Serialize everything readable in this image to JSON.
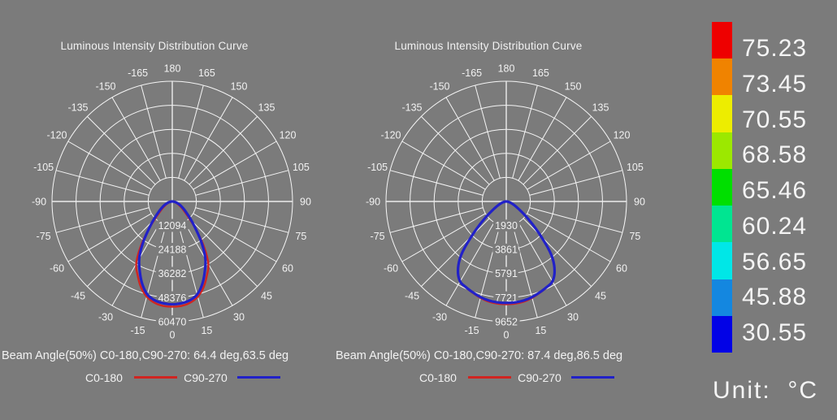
{
  "background": "#7b7b7b",
  "chart_data": [
    {
      "type": "polar-line",
      "title": "Luminous Intensity Distribution Curve",
      "beam_angle_text": "Beam Angle(50%) C0-180,C90-270: 64.4 deg,63.5 deg",
      "beam_angle_c0_180_deg": 64.4,
      "beam_angle_c90_270_deg": 63.5,
      "angle_unit": "deg",
      "angle_ticks": [
        0,
        15,
        30,
        45,
        60,
        75,
        90,
        105,
        120,
        135,
        150,
        165,
        180,
        -15,
        -30,
        -45,
        -60,
        -75,
        -90,
        -105,
        -120,
        -135,
        -150,
        -165
      ],
      "radial_ticks": [
        12094,
        24188,
        36282,
        48376,
        60470
      ],
      "radial_max": 60470,
      "series": [
        {
          "name": "C0-180",
          "color": "#d02521",
          "angle_step_deg": 5,
          "angles_deg": [
            0,
            5,
            10,
            15,
            20,
            25,
            30,
            35,
            40,
            45,
            50,
            55,
            60,
            65,
            70,
            75,
            80,
            85,
            90
          ],
          "values": [
            52910,
            52730,
            51700,
            49590,
            45960,
            41120,
            36280,
            27820,
            18750,
            12090,
            8160,
            6050,
            4230,
            3020,
            1940,
            1210,
            730,
            360,
            0
          ]
        },
        {
          "name": "C90-270",
          "color": "#2121c8",
          "angle_step_deg": 5,
          "angles_deg": [
            0,
            5,
            10,
            15,
            20,
            25,
            30,
            35,
            40,
            45,
            50,
            55,
            60,
            65,
            70,
            75,
            80,
            85,
            90
          ],
          "values": [
            51700,
            51400,
            50490,
            48380,
            44140,
            38700,
            33260,
            26000,
            18750,
            13610,
            9980,
            7560,
            5740,
            4350,
            3020,
            2120,
            1210,
            600,
            0
          ]
        }
      ]
    },
    {
      "type": "polar-line",
      "title": "Luminous Intensity Distribution Curve",
      "beam_angle_text": "Beam Angle(50%) C0-180,C90-270: 87.4 deg,86.5 deg",
      "beam_angle_c0_180_deg": 87.4,
      "beam_angle_c90_270_deg": 86.5,
      "angle_unit": "deg",
      "angle_ticks": [
        0,
        15,
        30,
        45,
        60,
        75,
        90,
        105,
        120,
        135,
        150,
        165,
        180,
        -15,
        -30,
        -45,
        -60,
        -75,
        -90,
        -105,
        -120,
        -135,
        -150,
        -165
      ],
      "radial_ticks": [
        1930,
        3861,
        5791,
        7721,
        9652
      ],
      "radial_max": 9652,
      "series": [
        {
          "name": "C0-180",
          "color": "#d02521",
          "angle_step_deg": 5,
          "angles_deg": [
            0,
            5,
            10,
            15,
            20,
            25,
            30,
            35,
            40,
            45,
            50,
            55,
            60,
            65,
            70,
            75,
            80,
            85,
            90
          ],
          "values": [
            8250,
            8230,
            8160,
            8010,
            7820,
            7630,
            7430,
            6760,
            5600,
            3860,
            2510,
            1590,
            1010,
            680,
            430,
            270,
            150,
            80,
            0
          ]
        },
        {
          "name": "C90-270",
          "color": "#2121c8",
          "angle_step_deg": 5,
          "angles_deg": [
            0,
            5,
            10,
            15,
            20,
            25,
            30,
            35,
            40,
            45,
            50,
            55,
            60,
            65,
            70,
            75,
            80,
            85,
            90
          ],
          "values": [
            8140,
            8130,
            8070,
            7950,
            7780,
            7610,
            7410,
            6760,
            5650,
            3910,
            2560,
            1640,
            1060,
            720,
            480,
            310,
            170,
            90,
            0
          ]
        }
      ]
    },
    {
      "type": "colorbar",
      "unit": "°C",
      "unit_text": "Unit:  °C",
      "entries": [
        {
          "value": "75.23",
          "color": "#ee0000"
        },
        {
          "value": "73.45",
          "color": "#f08300"
        },
        {
          "value": "70.55",
          "color": "#eded00"
        },
        {
          "value": "68.58",
          "color": "#9ce800"
        },
        {
          "value": "65.46",
          "color": "#00df00"
        },
        {
          "value": "60.24",
          "color": "#00e591"
        },
        {
          "value": "56.65",
          "color": "#00e7e7"
        },
        {
          "value": "45.88",
          "color": "#1487e0"
        },
        {
          "value": "30.55",
          "color": "#0202e6"
        }
      ]
    }
  ]
}
